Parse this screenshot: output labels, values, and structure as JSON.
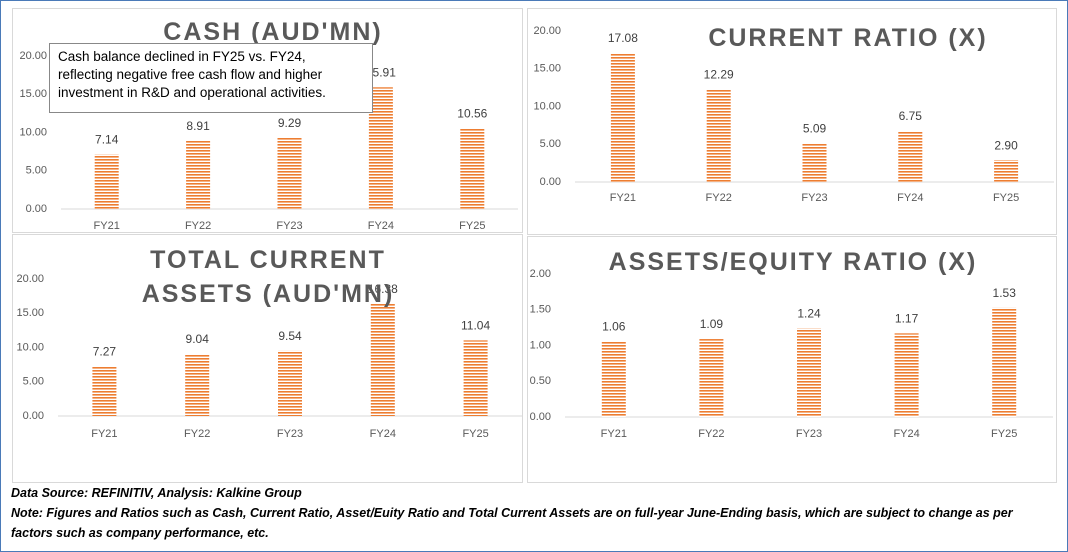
{
  "chart_data": [
    {
      "type": "bar",
      "title": "CASH (AUD'MN)",
      "annotation": "Cash balance declined in FY25 vs. FY24, reflecting negative free cash flow and higher investment in R&D and operational activities.",
      "categories": [
        "FY21",
        "FY22",
        "FY23",
        "FY24",
        "FY25"
      ],
      "values": [
        7.14,
        8.91,
        9.29,
        15.91,
        10.56
      ],
      "color": "#ed7d31",
      "ylim": [
        0,
        20
      ],
      "yticks": [
        {
          "value": 0,
          "label": "0.00"
        },
        {
          "value": 5,
          "label": "5.00"
        },
        {
          "value": 10,
          "label": "10.00"
        },
        {
          "value": 15,
          "label": "15.00"
        },
        {
          "value": 20,
          "label": "20.00"
        }
      ]
    },
    {
      "type": "bar",
      "title": "CURRENT RATIO (X)",
      "categories": [
        "FY21",
        "FY22",
        "FY23",
        "FY24",
        "FY25"
      ],
      "values": [
        17.08,
        12.29,
        5.09,
        6.75,
        2.9
      ],
      "value_labels": [
        "17.08",
        "12.29",
        "5.09",
        "6.75",
        "2.90"
      ],
      "color": "#ed7d31",
      "ylim": [
        0,
        20
      ],
      "yticks": [
        {
          "value": 0,
          "label": "0.00"
        },
        {
          "value": 5,
          "label": "5.00"
        },
        {
          "value": 10,
          "label": "10.00"
        },
        {
          "value": 15,
          "label": "15.00"
        },
        {
          "value": 20,
          "label": "20.00"
        }
      ]
    },
    {
      "type": "bar",
      "title": "TOTAL CURRENT ASSETS (AUD'MN)",
      "categories": [
        "FY21",
        "FY22",
        "FY23",
        "FY24",
        "FY25"
      ],
      "values": [
        7.27,
        9.04,
        9.54,
        16.38,
        11.04
      ],
      "color": "#ed7d31",
      "ylim": [
        0,
        20
      ],
      "yticks": [
        {
          "value": 0,
          "label": "0.00"
        },
        {
          "value": 5,
          "label": "5.00"
        },
        {
          "value": 10,
          "label": "10.00"
        },
        {
          "value": 15,
          "label": "15.00"
        },
        {
          "value": 20,
          "label": "20.00"
        }
      ]
    },
    {
      "type": "bar",
      "title": "ASSETS/EQUITY RATIO (X)",
      "categories": [
        "FY21",
        "FY22",
        "FY23",
        "FY24",
        "FY25"
      ],
      "values": [
        1.06,
        1.09,
        1.24,
        1.17,
        1.53
      ],
      "color": "#ed7d31",
      "ylim": [
        0,
        2
      ],
      "yticks": [
        {
          "value": 0,
          "label": "0.00"
        },
        {
          "value": 0.5,
          "label": "0.50"
        },
        {
          "value": 1,
          "label": "1.00"
        },
        {
          "value": 1.5,
          "label": "1.50"
        },
        {
          "value": 2,
          "label": "2.00"
        }
      ]
    }
  ],
  "source": "Data Source: REFINITIV, Analysis: Kalkine Group",
  "note": "Note: Figures and Ratios such as Cash, Current Ratio, Asset/Euity Ratio and Total Current Assets are on full-year June-Ending basis, which are subject to change as per factors such as company performance, etc."
}
